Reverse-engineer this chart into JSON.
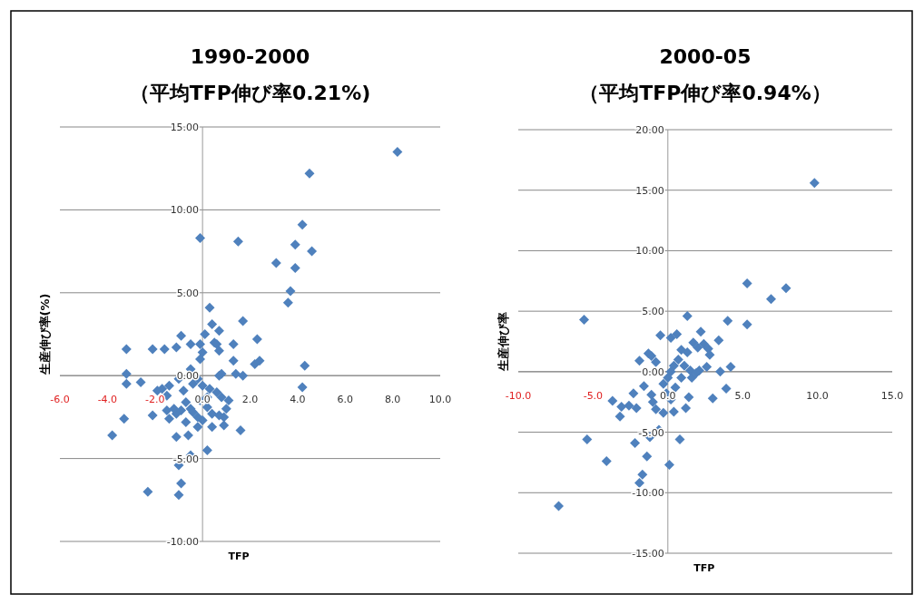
{
  "chart_data": [
    {
      "type": "scatter",
      "title": "1990-2000",
      "subtitle": "（平均TFP伸び率0.21%)",
      "xlabel": "TFP",
      "ylabel": "生産伸び率(%)",
      "xlim": [
        -6,
        10
      ],
      "ylim": [
        -10,
        15
      ],
      "xticks": [
        {
          "value": -6,
          "label": "-6.0"
        },
        {
          "value": -4,
          "label": "-4.0"
        },
        {
          "value": -2,
          "label": "-2.0"
        },
        {
          "value": 0,
          "label": "0.0"
        },
        {
          "value": 2,
          "label": "2.0"
        },
        {
          "value": 4,
          "label": "4.0"
        },
        {
          "value": 6,
          "label": "6.0"
        },
        {
          "value": 8,
          "label": "8.0"
        },
        {
          "value": 10,
          "label": "10.0"
        }
      ],
      "yticks": [
        {
          "value": -10,
          "label": "-10.00"
        },
        {
          "value": -5,
          "label": "-5.00"
        },
        {
          "value": 0,
          "label": "0.00"
        },
        {
          "value": 5,
          "label": "5.00"
        },
        {
          "value": 10,
          "label": "10.00"
        },
        {
          "value": 15,
          "label": "15.00"
        }
      ],
      "grid": "y",
      "marker": "diamond",
      "series": [
        {
          "color": "#4f81bd",
          "x": [
            8.2,
            4.5,
            4.2,
            3.9,
            4.6,
            -0.1,
            1.5,
            3.1,
            3.9,
            3.7,
            3.6,
            0.3,
            1.7,
            0.4,
            0.7,
            0.1,
            -0.9,
            2.3,
            0.5,
            0.6,
            -0.5,
            -0.1,
            -1.1,
            1.3,
            0.7,
            -2.1,
            -1.6,
            -3.2,
            1.3,
            2.2,
            2.4,
            4.3,
            -3.2,
            -3.2,
            -2.6,
            -0.5,
            -0.1,
            0.0,
            0.8,
            0.7,
            1.4,
            1.7,
            4.2,
            -1.7,
            -1.4,
            -1.9,
            -1.5,
            -1.0,
            -0.8,
            -0.4,
            -0.2,
            0.0,
            0.3,
            0.6,
            0.8,
            1.1,
            1.0,
            0.9,
            -3.3,
            -2.1,
            -1.5,
            -1.4,
            -1.1,
            -0.7,
            -0.7,
            -0.4,
            -0.2,
            0.0,
            0.2,
            0.4,
            0.7,
            0.9,
            -0.2,
            0.4,
            1.6,
            -3.8,
            -1.1,
            -0.6,
            0.2,
            -0.5,
            -1.0,
            -0.9,
            -2.3,
            -1.0,
            -1.2,
            -0.9,
            -0.5,
            -0.1,
            0.2
          ],
          "values": [
            13.5,
            12.2,
            9.1,
            7.9,
            7.5,
            8.3,
            8.1,
            6.8,
            6.5,
            5.1,
            4.4,
            4.1,
            3.3,
            3.1,
            2.7,
            2.5,
            2.4,
            2.2,
            2.0,
            1.9,
            1.9,
            1.9,
            1.7,
            1.9,
            1.5,
            1.6,
            1.6,
            1.6,
            0.9,
            0.7,
            0.9,
            0.6,
            0.1,
            -0.5,
            -0.4,
            0.4,
            1.0,
            1.4,
            0.1,
            0.0,
            0.1,
            0.0,
            -0.7,
            -0.8,
            -0.6,
            -0.9,
            -1.2,
            -0.2,
            -0.9,
            -0.5,
            -0.2,
            -0.6,
            -0.8,
            -1.0,
            -1.3,
            -1.5,
            -2.0,
            -2.5,
            -2.6,
            -2.4,
            -2.1,
            -2.6,
            -2.3,
            -1.6,
            -2.8,
            -2.2,
            -2.5,
            -2.7,
            -1.9,
            -2.3,
            -2.4,
            -3.0,
            -3.1,
            -3.1,
            -3.3,
            -3.6,
            -3.7,
            -3.6,
            -4.5,
            -4.8,
            -5.4,
            -6.5,
            -7.0,
            -7.2,
            -2.0,
            -2.1,
            -2.0,
            -1.5,
            -1.3
          ]
        }
      ]
    },
    {
      "type": "scatter",
      "title": "2000-05",
      "subtitle": "（平均TFP伸び率0.94%）",
      "xlabel": "TFP",
      "ylabel": "生産伸び率",
      "xlim": [
        -10,
        15
      ],
      "ylim": [
        -15,
        20
      ],
      "xticks": [
        {
          "value": -10,
          "label": "-10.0"
        },
        {
          "value": -5,
          "label": "-5.0"
        },
        {
          "value": 0,
          "label": "0.0"
        },
        {
          "value": 5,
          "label": "5.0"
        },
        {
          "value": 10,
          "label": "10.0"
        },
        {
          "value": 15,
          "label": "15.0"
        }
      ],
      "yticks": [
        {
          "value": -15,
          "label": "-15.00"
        },
        {
          "value": -10,
          "label": "-10.00"
        },
        {
          "value": -5,
          "label": "-5.00"
        },
        {
          "value": 0,
          "label": "0.00"
        },
        {
          "value": 5,
          "label": "5.00"
        },
        {
          "value": 10,
          "label": "10.00"
        },
        {
          "value": 15,
          "label": "15.00"
        },
        {
          "value": 20,
          "label": "20.00"
        }
      ],
      "grid": "y",
      "marker": "diamond",
      "series": [
        {
          "color": "#4f81bd",
          "x": [
            9.8,
            5.3,
            7.9,
            6.9,
            1.3,
            -5.6,
            4.0,
            5.3,
            2.2,
            0.6,
            -0.5,
            0.2,
            3.4,
            1.7,
            2.4,
            2.0,
            2.7,
            0.9,
            1.3,
            2.8,
            -1.3,
            -1.1,
            -1.9,
            -0.8,
            4.2,
            2.6,
            3.5,
            2.1,
            1.5,
            0.7,
            0.4,
            0.2,
            0.0,
            -0.3,
            1.1,
            0.9,
            0.5,
            3.9,
            -1.6,
            -2.3,
            -1.1,
            1.4,
            3.0,
            -3.7,
            -2.6,
            -2.1,
            -3.1,
            -3.2,
            -0.8,
            -0.3,
            0.4,
            1.2,
            -1.0,
            -0.6,
            -1.2,
            -5.4,
            0.8,
            -2.2,
            -1.4,
            -4.1,
            0.1,
            -1.7,
            -1.9,
            -7.3,
            -0.1,
            0.2,
            1.6,
            1.9
          ],
          "values": [
            15.6,
            7.3,
            6.9,
            6.0,
            4.6,
            4.3,
            4.2,
            3.9,
            3.3,
            3.1,
            3.0,
            2.8,
            2.6,
            2.4,
            2.3,
            2.0,
            1.9,
            1.8,
            1.6,
            1.4,
            1.5,
            1.3,
            0.9,
            0.8,
            0.4,
            0.4,
            0.0,
            0.1,
            0.1,
            1.0,
            0.5,
            0.0,
            -0.5,
            -1.0,
            0.5,
            -0.5,
            -1.3,
            -1.4,
            -1.2,
            -1.8,
            -1.9,
            -2.1,
            -2.2,
            -2.4,
            -2.8,
            -3.0,
            -2.9,
            -3.7,
            -3.1,
            -3.4,
            -3.3,
            -3.0,
            -2.5,
            -4.8,
            -5.4,
            -5.6,
            -5.6,
            -5.9,
            -7.0,
            -7.4,
            -7.7,
            -8.5,
            -9.2,
            -11.1,
            -1.8,
            -2.3,
            -0.5,
            -0.1
          ]
        }
      ]
    }
  ]
}
